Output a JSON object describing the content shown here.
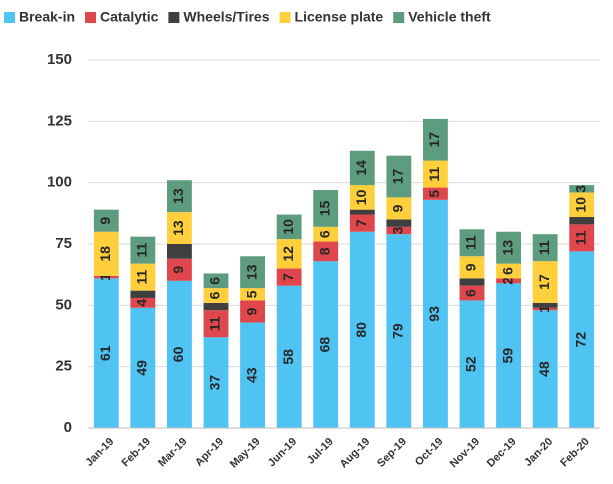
{
  "chart_data": {
    "type": "stacked_bar",
    "categories": [
      "Jan-19",
      "Feb-19",
      "Mar-19",
      "Apr-19",
      "May-19",
      "Jun-19",
      "Jul-19",
      "Aug-19",
      "Sep-19",
      "Oct-19",
      "Nov-19",
      "Dec-19",
      "Jan-20",
      "Feb-20"
    ],
    "series": [
      {
        "name": "Break-in",
        "color": "#4fc3f2",
        "data_labels": true,
        "values": [
          61,
          49,
          60,
          37,
          43,
          58,
          68,
          80,
          79,
          93,
          52,
          59,
          48,
          72
        ]
      },
      {
        "name": "Catalytic",
        "color": "#e0474c",
        "data_labels": true,
        "values": [
          1,
          4,
          9,
          11,
          9,
          7,
          8,
          7,
          3,
          5,
          6,
          2,
          1,
          11
        ]
      },
      {
        "name": "Wheels/Tires",
        "color": "#3f3f3f",
        "data_labels": false,
        "values": [
          0,
          3,
          6,
          3,
          0,
          0,
          0,
          2,
          3,
          0,
          3,
          0,
          2,
          3
        ]
      },
      {
        "name": "License plate",
        "color": "#ffd03c",
        "data_labels": true,
        "values": [
          18,
          11,
          13,
          6,
          5,
          12,
          6,
          10,
          9,
          11,
          9,
          6,
          17,
          10
        ]
      },
      {
        "name": "Vehicle theft",
        "color": "#5e9c7f",
        "data_labels": true,
        "values": [
          9,
          11,
          13,
          6,
          13,
          10,
          15,
          14,
          17,
          17,
          11,
          13,
          11,
          3
        ]
      }
    ],
    "ylim": [
      0,
      150
    ],
    "yticks": [
      0,
      25,
      50,
      75,
      100,
      125,
      150
    ],
    "grid": true,
    "legend": "top"
  }
}
